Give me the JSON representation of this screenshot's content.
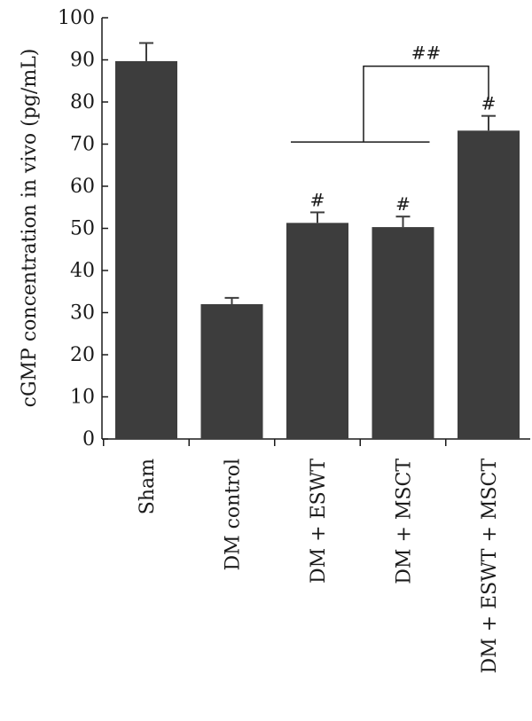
{
  "chart_data": {
    "type": "bar",
    "title": "",
    "xlabel": "",
    "ylabel": "cGMP concentration in vivo (pg/mL)",
    "ylim": [
      0,
      100
    ],
    "yticks": [
      0,
      10,
      20,
      30,
      40,
      50,
      60,
      70,
      80,
      90,
      100
    ],
    "categories": [
      "Sham",
      "DM control",
      "DM + ESWT",
      "DM + MSCT",
      "DM + ESWT + MSCT"
    ],
    "values": [
      89.7,
      32.0,
      51.3,
      50.3,
      73.2
    ],
    "errors": [
      4.3,
      1.5,
      2.5,
      2.5,
      3.5
    ],
    "bar_labels": [
      "",
      "",
      "#",
      "#",
      "#"
    ],
    "bracket_label": "##",
    "colors": {
      "bar": "#3d3d3d",
      "axis": "#1a1a1a"
    },
    "grid": false,
    "legend": "none"
  }
}
